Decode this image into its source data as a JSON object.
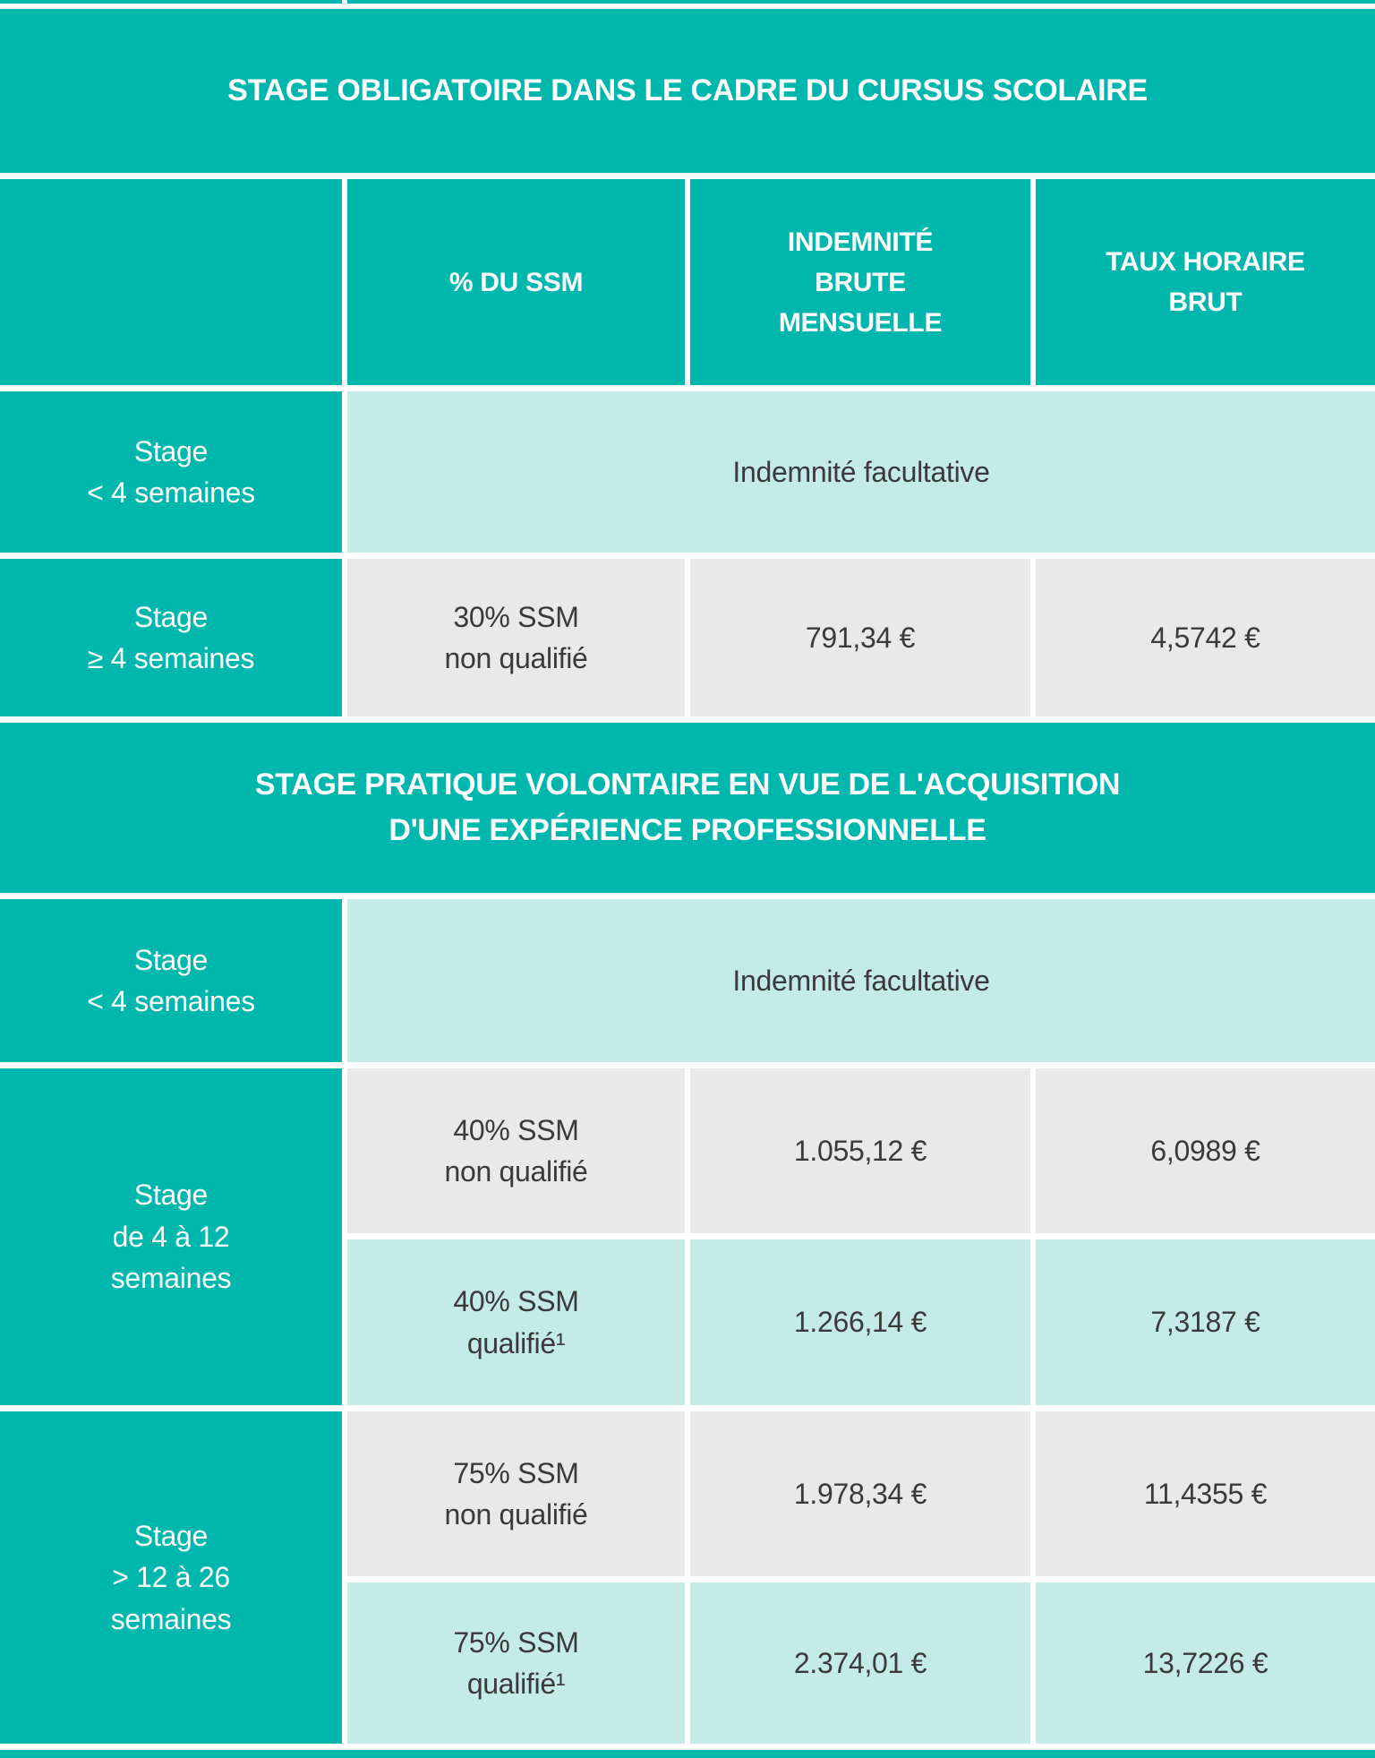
{
  "colors": {
    "teal": "#00b7ae",
    "light_teal": "#c5ebe9",
    "light_gray": "#e9e9e9",
    "text_dark": "#3a3a3a",
    "text_white": "#ffffff"
  },
  "columns": {
    "pct_ssm": "% DU SSM",
    "indemnite_brute": "INDEMNITÉ\nBRUTE\nMENSUELLE",
    "taux_horaire": "TAUX HORAIRE\nBRUT"
  },
  "section1": {
    "title": "STAGE OBLIGATOIRE DANS LE CADRE DU CURSUS SCOLAIRE",
    "row_lt4": {
      "label": "Stage\n< 4 semaines",
      "value": "Indemnité facultative"
    },
    "row_ge4": {
      "label": "Stage\n≥ 4 semaines",
      "pct": "30% SSM\nnon qualifié",
      "monthly": "791,34 €",
      "hourly": "4,5742 €"
    }
  },
  "section2": {
    "title": "STAGE PRATIQUE VOLONTAIRE EN VUE DE L'ACQUISITION\nD'UNE EXPÉRIENCE PROFESSIONNELLE",
    "row_lt4": {
      "label": "Stage\n< 4 semaines",
      "value": "Indemnité facultative"
    },
    "group_4_12": {
      "label": "Stage\nde 4 à 12\nsemaines",
      "rows": [
        {
          "pct": "40% SSM\nnon qualifié",
          "monthly": "1.055,12 €",
          "hourly": "6,0989 €"
        },
        {
          "pct": "40% SSM\nqualifié¹",
          "monthly": "1.266,14 €",
          "hourly": "7,3187 €"
        }
      ]
    },
    "group_12_26": {
      "label": "Stage\n> 12 à 26\nsemaines",
      "rows": [
        {
          "pct": "75% SSM\nnon qualifié",
          "monthly": "1.978,34 €",
          "hourly": "11,4355 €"
        },
        {
          "pct": "75% SSM\nqualifié¹",
          "monthly": "2.374,01 €",
          "hourly": "13,7226 €"
        }
      ]
    }
  }
}
